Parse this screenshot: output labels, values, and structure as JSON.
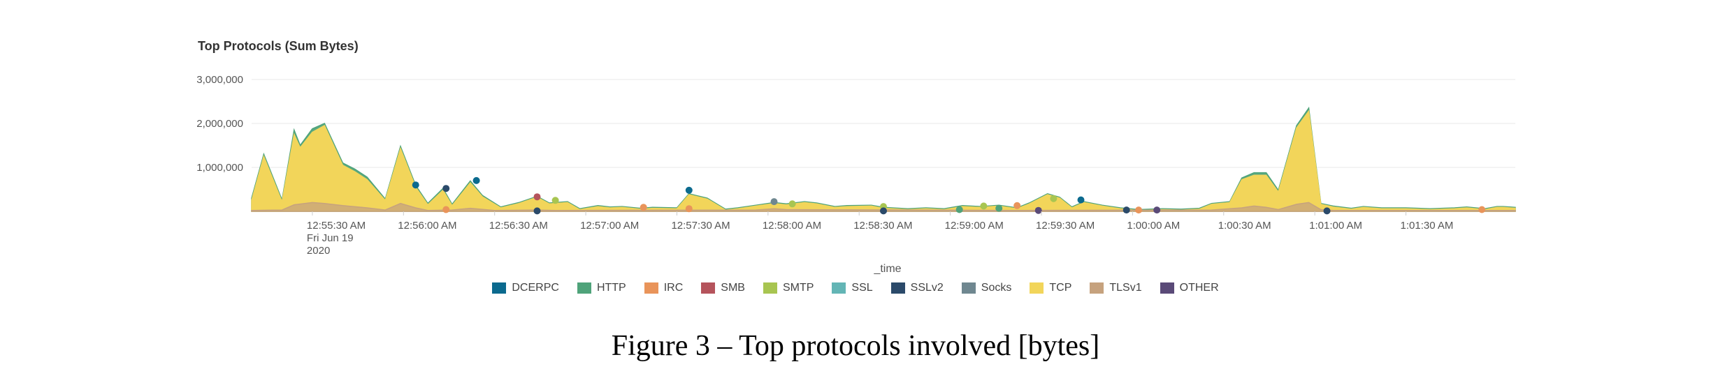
{
  "chart_data": {
    "type": "area",
    "title": "Top Protocols (Sum Bytes)",
    "xlabel": "_time",
    "ylabel": "",
    "ylim": [
      0,
      3000000
    ],
    "yticks": [
      "3,000,000",
      "2,000,000",
      "1,000,000"
    ],
    "ytick_values": [
      3000000,
      2000000,
      1000000
    ],
    "xticks": [
      {
        "t": 20,
        "lines": [
          "12:55:30 AM",
          "Fri Jun 19",
          "2020"
        ]
      },
      {
        "t": 50,
        "lines": [
          "12:56:00 AM"
        ]
      },
      {
        "t": 80,
        "lines": [
          "12:56:30 AM"
        ]
      },
      {
        "t": 110,
        "lines": [
          "12:57:00 AM"
        ]
      },
      {
        "t": 140,
        "lines": [
          "12:57:30 AM"
        ]
      },
      {
        "t": 170,
        "lines": [
          "12:58:00 AM"
        ]
      },
      {
        "t": 200,
        "lines": [
          "12:58:30 AM"
        ]
      },
      {
        "t": 230,
        "lines": [
          "12:59:00 AM"
        ]
      },
      {
        "t": 260,
        "lines": [
          "12:59:30 AM"
        ]
      },
      {
        "t": 290,
        "lines": [
          "1:00:00 AM"
        ]
      },
      {
        "t": 320,
        "lines": [
          "1:00:30 AM"
        ]
      },
      {
        "t": 350,
        "lines": [
          "1:01:00 AM"
        ]
      },
      {
        "t": 380,
        "lines": [
          "1:01:30 AM"
        ]
      }
    ],
    "grid": true,
    "legend_position": "bottom",
    "series": [
      {
        "name": "TCP",
        "color": "#f2d55a",
        "points": [
          [
            0,
            250000
          ],
          [
            4,
            1250000
          ],
          [
            10,
            220000
          ],
          [
            14,
            1750000
          ],
          [
            16,
            1450000
          ],
          [
            20,
            1800000
          ],
          [
            24,
            1950000
          ],
          [
            30,
            1050000
          ],
          [
            34,
            900000
          ],
          [
            38,
            720000
          ],
          [
            44,
            250000
          ],
          [
            49,
            1430000
          ],
          [
            54,
            550000
          ],
          [
            58,
            150000
          ],
          [
            63,
            480000
          ],
          [
            66,
            130000
          ],
          [
            72,
            650000
          ],
          [
            76,
            330000
          ],
          [
            82,
            80000
          ],
          [
            88,
            180000
          ],
          [
            94,
            320000
          ],
          [
            98,
            170000
          ],
          [
            104,
            200000
          ],
          [
            108,
            40000
          ],
          [
            114,
            110000
          ],
          [
            118,
            80000
          ],
          [
            122,
            90000
          ],
          [
            128,
            50000
          ],
          [
            132,
            70000
          ],
          [
            140,
            60000
          ],
          [
            144,
            380000
          ],
          [
            150,
            280000
          ],
          [
            156,
            30000
          ],
          [
            160,
            60000
          ],
          [
            166,
            120000
          ],
          [
            172,
            180000
          ],
          [
            176,
            150000
          ],
          [
            182,
            200000
          ],
          [
            186,
            170000
          ],
          [
            192,
            90000
          ],
          [
            196,
            110000
          ],
          [
            204,
            120000
          ],
          [
            208,
            70000
          ],
          [
            216,
            40000
          ],
          [
            222,
            60000
          ],
          [
            228,
            40000
          ],
          [
            234,
            110000
          ],
          [
            240,
            90000
          ],
          [
            246,
            120000
          ],
          [
            252,
            60000
          ],
          [
            256,
            170000
          ],
          [
            262,
            380000
          ],
          [
            266,
            300000
          ],
          [
            270,
            80000
          ],
          [
            274,
            200000
          ],
          [
            280,
            120000
          ],
          [
            286,
            60000
          ],
          [
            292,
            20000
          ],
          [
            300,
            40000
          ],
          [
            306,
            30000
          ],
          [
            312,
            50000
          ],
          [
            316,
            160000
          ],
          [
            322,
            200000
          ],
          [
            326,
            720000
          ],
          [
            330,
            820000
          ],
          [
            334,
            820000
          ],
          [
            338,
            440000
          ],
          [
            344,
            1900000
          ],
          [
            348,
            2280000
          ],
          [
            352,
            160000
          ],
          [
            356,
            100000
          ],
          [
            362,
            50000
          ],
          [
            366,
            90000
          ],
          [
            372,
            60000
          ],
          [
            380,
            60000
          ],
          [
            388,
            40000
          ],
          [
            396,
            60000
          ],
          [
            400,
            80000
          ],
          [
            406,
            40000
          ],
          [
            410,
            90000
          ],
          [
            412,
            90000
          ],
          [
            416,
            70000
          ]
        ]
      },
      {
        "name": "HTTP",
        "color": "#4fa37a",
        "points": [
          [
            0,
            300000
          ],
          [
            4,
            1300000
          ],
          [
            10,
            260000
          ],
          [
            14,
            1850000
          ],
          [
            16,
            1500000
          ],
          [
            20,
            1880000
          ],
          [
            24,
            2000000
          ],
          [
            30,
            1100000
          ],
          [
            34,
            960000
          ],
          [
            38,
            780000
          ],
          [
            44,
            280000
          ],
          [
            49,
            1480000
          ],
          [
            54,
            590000
          ],
          [
            58,
            180000
          ],
          [
            63,
            520000
          ],
          [
            66,
            160000
          ],
          [
            72,
            690000
          ],
          [
            76,
            360000
          ],
          [
            82,
            100000
          ],
          [
            88,
            200000
          ],
          [
            94,
            340000
          ],
          [
            98,
            190000
          ],
          [
            104,
            220000
          ],
          [
            108,
            60000
          ],
          [
            114,
            130000
          ],
          [
            118,
            100000
          ],
          [
            122,
            110000
          ],
          [
            128,
            70000
          ],
          [
            132,
            90000
          ],
          [
            140,
            80000
          ],
          [
            144,
            400000
          ],
          [
            150,
            300000
          ],
          [
            156,
            50000
          ],
          [
            160,
            80000
          ],
          [
            166,
            140000
          ],
          [
            172,
            200000
          ],
          [
            176,
            170000
          ],
          [
            182,
            220000
          ],
          [
            186,
            190000
          ],
          [
            192,
            110000
          ],
          [
            196,
            130000
          ],
          [
            204,
            140000
          ],
          [
            208,
            90000
          ],
          [
            216,
            60000
          ],
          [
            222,
            80000
          ],
          [
            228,
            60000
          ],
          [
            234,
            130000
          ],
          [
            240,
            110000
          ],
          [
            246,
            140000
          ],
          [
            252,
            80000
          ],
          [
            256,
            190000
          ],
          [
            262,
            400000
          ],
          [
            266,
            320000
          ],
          [
            270,
            100000
          ],
          [
            274,
            220000
          ],
          [
            280,
            140000
          ],
          [
            286,
            80000
          ],
          [
            292,
            40000
          ],
          [
            300,
            60000
          ],
          [
            306,
            50000
          ],
          [
            312,
            70000
          ],
          [
            316,
            180000
          ],
          [
            322,
            220000
          ],
          [
            326,
            760000
          ],
          [
            330,
            880000
          ],
          [
            334,
            880000
          ],
          [
            338,
            480000
          ],
          [
            344,
            1950000
          ],
          [
            348,
            2350000
          ],
          [
            352,
            180000
          ],
          [
            356,
            120000
          ],
          [
            362,
            70000
          ],
          [
            366,
            110000
          ],
          [
            372,
            80000
          ],
          [
            380,
            80000
          ],
          [
            388,
            60000
          ],
          [
            396,
            80000
          ],
          [
            400,
            100000
          ],
          [
            406,
            60000
          ],
          [
            410,
            110000
          ],
          [
            412,
            110000
          ],
          [
            416,
            90000
          ]
        ]
      },
      {
        "name": "TLSv1",
        "color": "#c6a27e",
        "points": [
          [
            0,
            20000
          ],
          [
            10,
            30000
          ],
          [
            14,
            150000
          ],
          [
            20,
            200000
          ],
          [
            24,
            180000
          ],
          [
            30,
            130000
          ],
          [
            38,
            80000
          ],
          [
            44,
            30000
          ],
          [
            49,
            180000
          ],
          [
            54,
            80000
          ],
          [
            58,
            20000
          ],
          [
            66,
            30000
          ],
          [
            72,
            70000
          ],
          [
            80,
            20000
          ],
          [
            94,
            30000
          ],
          [
            100,
            20000
          ],
          [
            166,
            30000
          ],
          [
            172,
            60000
          ],
          [
            176,
            40000
          ],
          [
            250,
            20000
          ],
          [
            316,
            30000
          ],
          [
            326,
            80000
          ],
          [
            330,
            120000
          ],
          [
            334,
            90000
          ],
          [
            338,
            40000
          ],
          [
            344,
            160000
          ],
          [
            348,
            200000
          ],
          [
            352,
            40000
          ],
          [
            356,
            20000
          ],
          [
            416,
            20000
          ]
        ]
      }
    ],
    "markers": [
      {
        "series": "DCERPC",
        "t": 54,
        "y": 600000
      },
      {
        "series": "SSLv2",
        "t": 64,
        "y": 520000
      },
      {
        "series": "DCERPC",
        "t": 74,
        "y": 700000
      },
      {
        "series": "SMB",
        "t": 94,
        "y": 330000
      },
      {
        "series": "SMTP",
        "t": 100,
        "y": 250000
      },
      {
        "series": "SSLv2",
        "t": 94,
        "y": 10000
      },
      {
        "series": "IRC",
        "t": 64,
        "y": 40000
      },
      {
        "series": "IRC",
        "t": 129,
        "y": 90000
      },
      {
        "series": "DCERPC",
        "t": 144,
        "y": 480000
      },
      {
        "series": "IRC",
        "t": 144,
        "y": 60000
      },
      {
        "series": "Socks",
        "t": 172,
        "y": 220000
      },
      {
        "series": "SMTP",
        "t": 178,
        "y": 170000
      },
      {
        "series": "SMTP",
        "t": 208,
        "y": 110000
      },
      {
        "series": "SSLv2",
        "t": 208,
        "y": 10000
      },
      {
        "series": "HTTP",
        "t": 233,
        "y": 40000
      },
      {
        "series": "SMTP",
        "t": 241,
        "y": 120000
      },
      {
        "series": "HTTP",
        "t": 246,
        "y": 70000
      },
      {
        "series": "IRC",
        "t": 252,
        "y": 130000
      },
      {
        "series": "OTHER",
        "t": 259,
        "y": 20000
      },
      {
        "series": "SMTP",
        "t": 264,
        "y": 290000
      },
      {
        "series": "DCERPC",
        "t": 273,
        "y": 260000
      },
      {
        "series": "SSLv2",
        "t": 288,
        "y": 30000
      },
      {
        "series": "IRC",
        "t": 292,
        "y": 30000
      },
      {
        "series": "OTHER",
        "t": 298,
        "y": 30000
      },
      {
        "series": "SSLv2",
        "t": 354,
        "y": 10000
      },
      {
        "series": "IRC",
        "t": 405,
        "y": 40000
      }
    ]
  },
  "legend": [
    {
      "name": "DCERPC",
      "color": "#0b6a8e"
    },
    {
      "name": "HTTP",
      "color": "#4fa37a"
    },
    {
      "name": "IRC",
      "color": "#e9945a"
    },
    {
      "name": "SMB",
      "color": "#b5545c"
    },
    {
      "name": "SMTP",
      "color": "#a8c551"
    },
    {
      "name": "SSL",
      "color": "#63b5b5"
    },
    {
      "name": "SSLv2",
      "color": "#2b4a6a"
    },
    {
      "name": "Socks",
      "color": "#6f8790"
    },
    {
      "name": "TCP",
      "color": "#f2d55a"
    },
    {
      "name": "TLSv1",
      "color": "#c6a27e"
    },
    {
      "name": "OTHER",
      "color": "#5a4a78"
    }
  ],
  "caption": "Figure 3 – Top protocols involved [bytes]"
}
